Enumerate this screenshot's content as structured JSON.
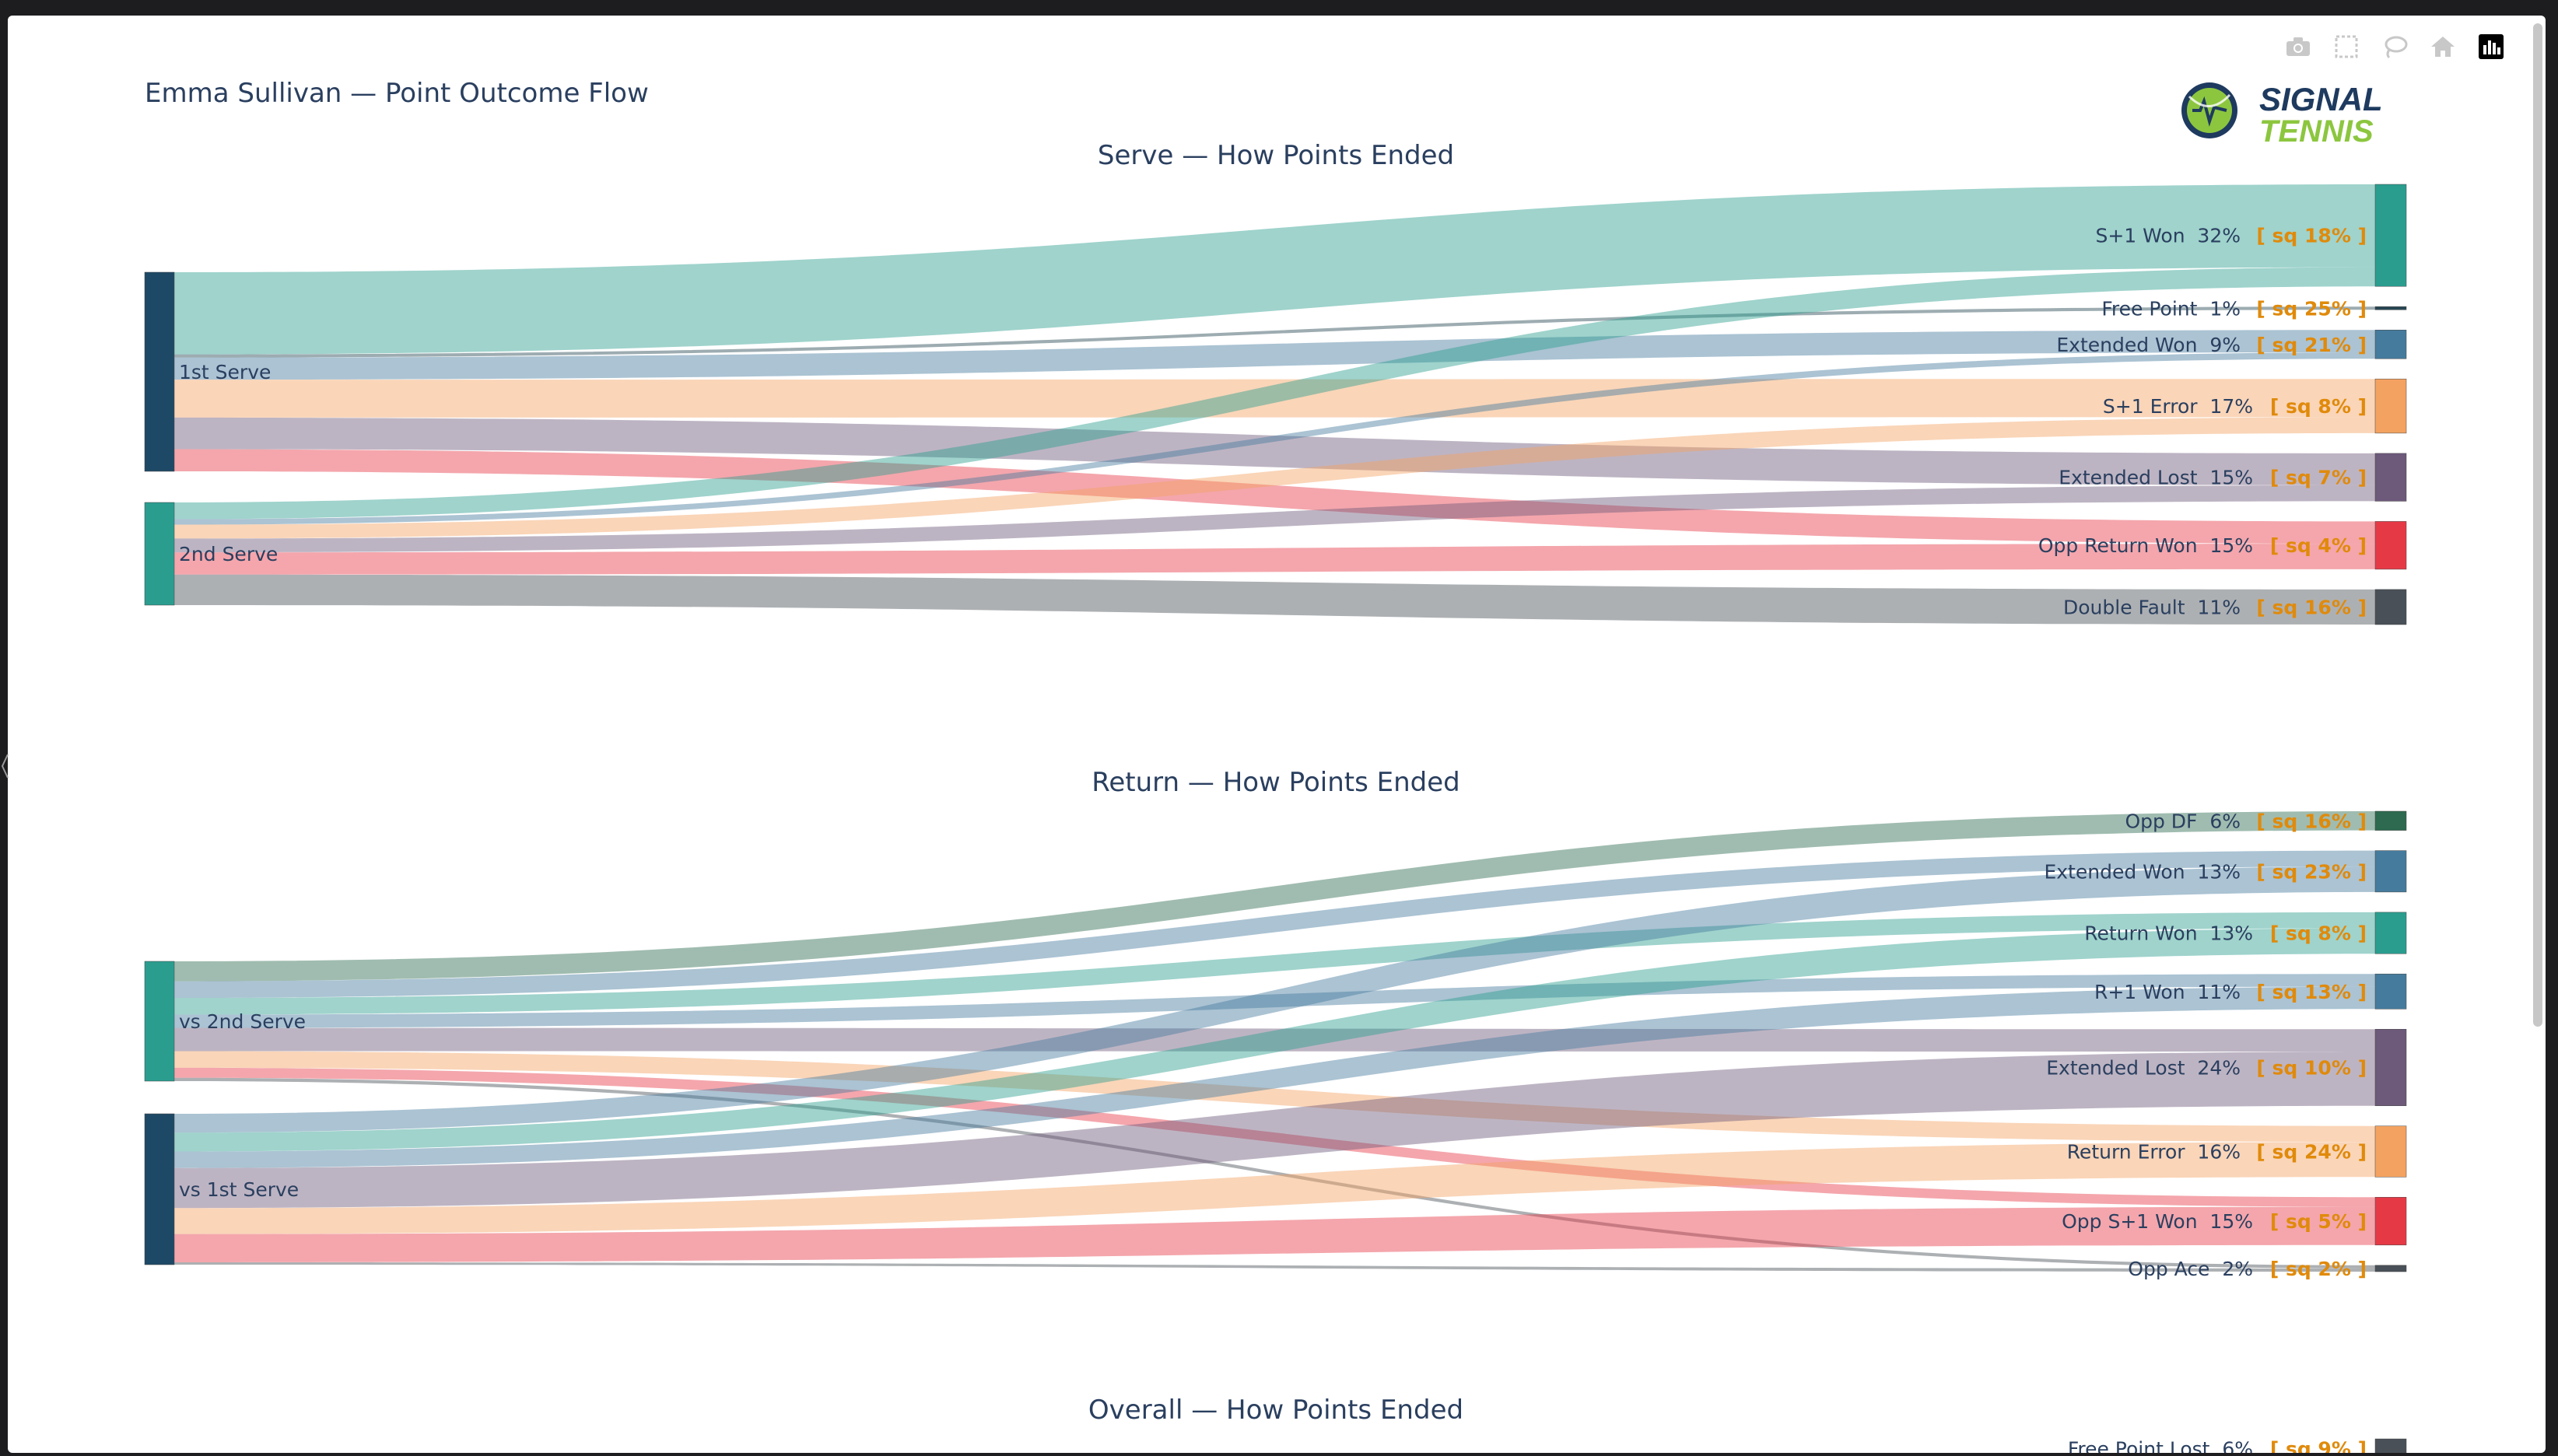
{
  "title": "Emma Sullivan — Point Outcome Flow",
  "modebar": {
    "icons": [
      "camera-icon",
      "box-select-icon",
      "lasso-icon",
      "home-icon",
      "plotly-logo-icon"
    ]
  },
  "logo": {
    "line1": "SIGNAL",
    "line2": "TENNIS"
  },
  "chart_data": [
    {
      "type": "sankey",
      "title": "Serve — How Points Ended",
      "sources": [
        {
          "name": "1st Serve",
          "color": "#1e4966"
        },
        {
          "name": "2nd Serve",
          "color": "#2a9d8f"
        }
      ],
      "targets": [
        {
          "name": "S+1 Won",
          "pct": "32%",
          "sq": "[ sq 18% ]",
          "color": "#2a9d8f",
          "w": 32
        },
        {
          "name": "Free Point",
          "pct": "1%",
          "sq": "[ sq 25% ]",
          "color": "#264653",
          "w": 1
        },
        {
          "name": "Extended Won",
          "pct": "9%",
          "sq": "[ sq 21% ]",
          "color": "#457b9d",
          "w": 9
        },
        {
          "name": "S+1 Error",
          "pct": "17%",
          "sq": "[ sq 8% ]",
          "color": "#f4a261",
          "w": 17
        },
        {
          "name": "Extended Lost",
          "pct": "15%",
          "sq": "[ sq 7% ]",
          "color": "#6d597a",
          "w": 15
        },
        {
          "name": "Opp Return Won",
          "pct": "15%",
          "sq": "[ sq 4% ]",
          "color": "#e63946",
          "w": 15
        },
        {
          "name": "Double Fault",
          "pct": "11%",
          "sq": "[ sq 16% ]",
          "color": "#495057",
          "w": 11
        }
      ],
      "links": [
        [
          0,
          0,
          26
        ],
        [
          0,
          1,
          1
        ],
        [
          0,
          2,
          7
        ],
        [
          0,
          3,
          12
        ],
        [
          0,
          4,
          10
        ],
        [
          0,
          5,
          7
        ],
        [
          1,
          0,
          6
        ],
        [
          1,
          2,
          2
        ],
        [
          1,
          3,
          5
        ],
        [
          1,
          4,
          5
        ],
        [
          1,
          5,
          8
        ],
        [
          1,
          6,
          11
        ]
      ]
    },
    {
      "type": "sankey",
      "title": "Return — How Points Ended",
      "sources": [
        {
          "name": "vs 2nd Serve",
          "color": "#2a9d8f"
        },
        {
          "name": "vs 1st Serve",
          "color": "#1e4966"
        }
      ],
      "targets": [
        {
          "name": "Opp DF",
          "pct": "6%",
          "sq": "[ sq 16% ]",
          "color": "#2d6a4f",
          "w": 6
        },
        {
          "name": "Extended Won",
          "pct": "13%",
          "sq": "[ sq 23% ]",
          "color": "#457b9d",
          "w": 13
        },
        {
          "name": "Return Won",
          "pct": "13%",
          "sq": "[ sq 8% ]",
          "color": "#2a9d8f",
          "w": 13
        },
        {
          "name": "R+1 Won",
          "pct": "11%",
          "sq": "[ sq 13% ]",
          "color": "#457b9d",
          "w": 11
        },
        {
          "name": "Extended Lost",
          "pct": "24%",
          "sq": "[ sq 10% ]",
          "color": "#6d597a",
          "w": 24
        },
        {
          "name": "Return Error",
          "pct": "16%",
          "sq": "[ sq 24% ]",
          "color": "#f4a261",
          "w": 16
        },
        {
          "name": "Opp S+1 Won",
          "pct": "15%",
          "sq": "[ sq 5% ]",
          "color": "#e63946",
          "w": 15
        },
        {
          "name": "Opp Ace",
          "pct": "2%",
          "sq": "[ sq 2% ]",
          "color": "#495057",
          "w": 2
        }
      ],
      "links": [
        [
          0,
          0,
          6
        ],
        [
          0,
          1,
          5
        ],
        [
          0,
          2,
          5
        ],
        [
          0,
          3,
          4
        ],
        [
          0,
          4,
          7
        ],
        [
          0,
          5,
          5
        ],
        [
          0,
          6,
          3
        ],
        [
          0,
          7,
          1
        ],
        [
          1,
          1,
          8
        ],
        [
          1,
          2,
          8
        ],
        [
          1,
          3,
          7
        ],
        [
          1,
          4,
          17
        ],
        [
          1,
          5,
          11
        ],
        [
          1,
          6,
          12
        ],
        [
          1,
          7,
          1
        ]
      ]
    },
    {
      "type": "sankey",
      "title": "Overall — How Points Ended",
      "sources": [],
      "targets": [
        {
          "name": "Free Point Lost",
          "pct": "6%",
          "sq": "[ sq 9% ]",
          "color": "#495057",
          "w": 6
        }
      ],
      "links": []
    }
  ]
}
